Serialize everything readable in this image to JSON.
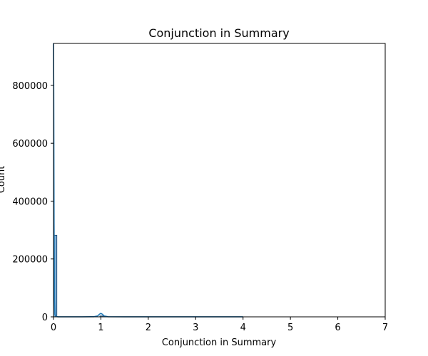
{
  "chart_data": {
    "type": "bar",
    "title": "Conjunction in Summary",
    "xlabel": "Conjunction in Summary",
    "ylabel": "Count",
    "xlim": [
      0,
      7
    ],
    "ylim": [
      0,
      945000
    ],
    "xticks": [
      0,
      1,
      2,
      3,
      4,
      5,
      6,
      7
    ],
    "xtick_labels": [
      "0",
      "1",
      "2",
      "3",
      "4",
      "5",
      "6",
      "7"
    ],
    "yticks": [
      0,
      200000,
      400000,
      600000,
      800000
    ],
    "ytick_labels": [
      "0",
      "200000",
      "400000",
      "600000",
      "800000"
    ],
    "histogram": {
      "bin_width": 0.07,
      "bins": [
        {
          "x0": 0.0,
          "x1": 0.07,
          "count": 282000
        },
        {
          "x0": 0.98,
          "x1": 1.05,
          "count": 3000
        }
      ]
    },
    "kde": {
      "x": [
        0.0,
        0.005,
        0.012,
        0.02,
        0.03,
        0.05,
        0.1,
        0.3,
        0.6,
        0.85,
        0.93,
        0.97,
        1.0,
        1.03,
        1.07,
        1.15,
        1.5,
        2.0,
        3.0,
        4.0
      ],
      "y": [
        945000,
        780000,
        320000,
        60000,
        8000,
        1000,
        200,
        100,
        100,
        500,
        3000,
        9000,
        12000,
        9000,
        3000,
        500,
        200,
        100,
        100,
        100
      ]
    },
    "colors": {
      "bar_fill": "#7fb1d9",
      "bar_edge": "#1f4e79",
      "line": "#1f77b4",
      "axes": "#000000",
      "background": "#ffffff"
    },
    "grid": false,
    "legend": "none"
  }
}
